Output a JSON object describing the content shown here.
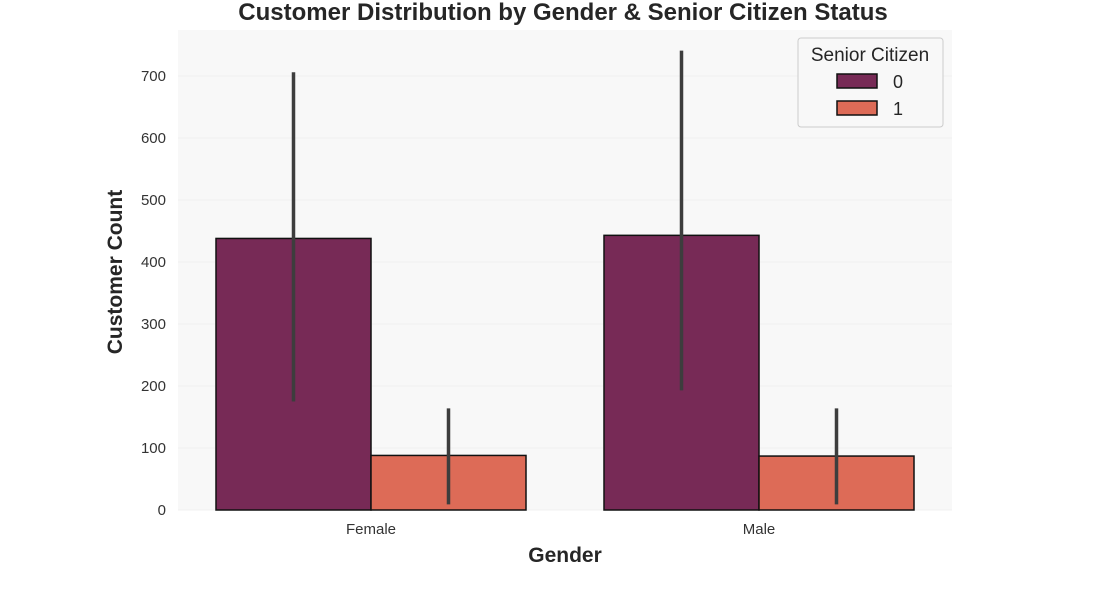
{
  "chart_data": {
    "type": "bar",
    "title": "Customer Distribution by Gender & Senior Citizen Status",
    "xlabel": "Gender",
    "ylabel": "Customer Count",
    "categories": [
      "Female",
      "Male"
    ],
    "ylim": [
      0,
      760
    ],
    "yticks": [
      0,
      100,
      200,
      300,
      400,
      500,
      600,
      700
    ],
    "grid": true,
    "legend": {
      "title": "Senior Citizen",
      "placement": "top-right"
    },
    "series": [
      {
        "name": "0",
        "color": "#772a56",
        "values": [
          438,
          443
        ],
        "error_low": [
          175,
          193
        ],
        "error_high": [
          706,
          741
        ]
      },
      {
        "name": "1",
        "color": "#dd6b57",
        "values": [
          88,
          87
        ],
        "error_low": [
          9,
          9
        ],
        "error_high": [
          164,
          164
        ]
      }
    ]
  }
}
